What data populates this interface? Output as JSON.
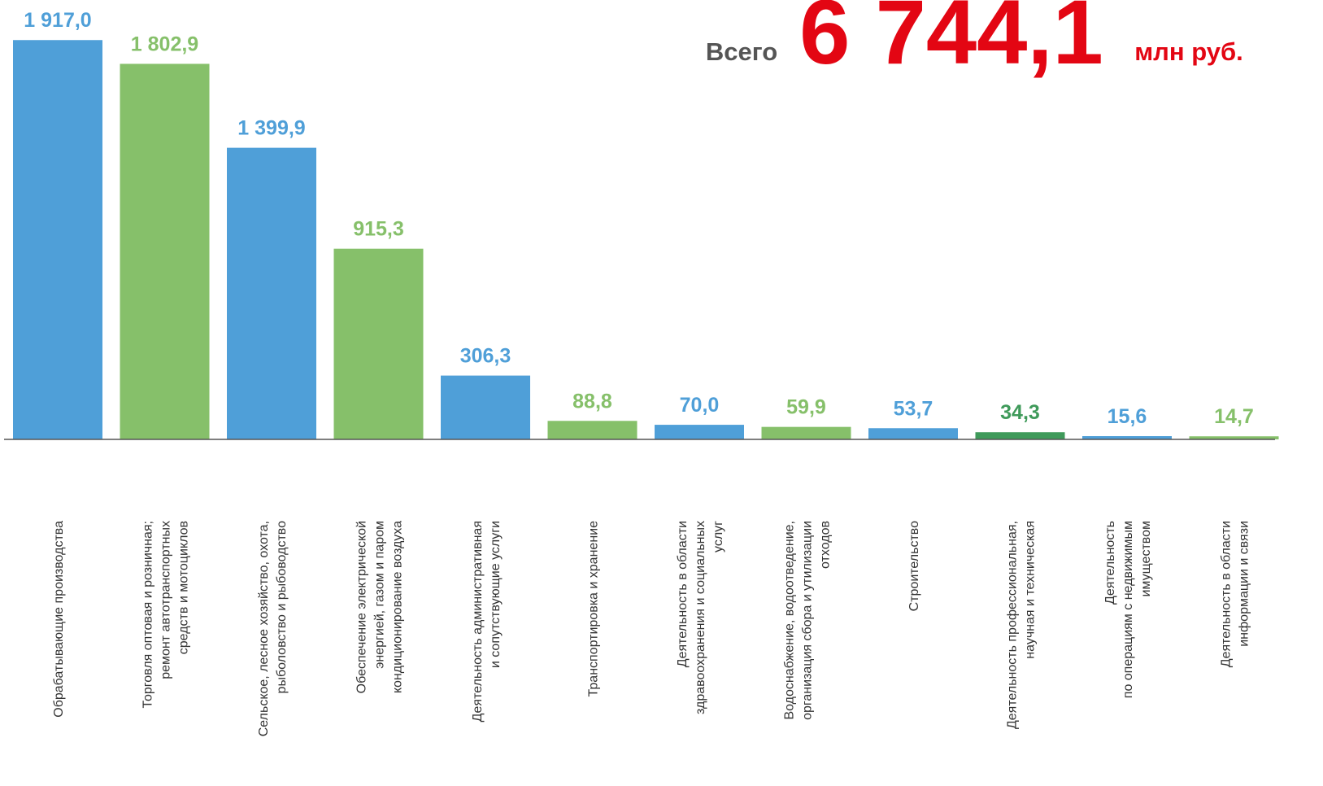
{
  "chart_data": {
    "type": "bar",
    "annotations": {
      "prefix": "Всего",
      "total": "6 744,1",
      "unit": "млн руб."
    },
    "categories": [
      "Обрабатывающие  производства",
      "Торговля оптовая и розничная;\nремонт автотранспортных\nсредств  и мотоциклов",
      "Сельское, лесное хозяйство, охота,\nрыболовство и  рыбоводство",
      "Обеспечение электрической\nэнергией, газом и паром\nкондиционирование воздуха",
      "Деятельность  административная\nи сопутствующие  услуги",
      "Транспортировка и хранение",
      "Деятельность в области\nздравоохранения и социальных\nуслуг",
      "Водоснабжение, водоотведение,\nорганизация сбора и утилизации\nотходов",
      "Строительство",
      "Деятельность профессиональная,\nнаучная и техническая",
      "Деятельность\nпо операциям  с недвижимым\nимуществом",
      "Деятельность в области\nинформации  и связи"
    ],
    "values": [
      1917.0,
      1802.9,
      1399.9,
      915.3,
      306.3,
      88.8,
      70.0,
      59.9,
      53.7,
      34.3,
      15.6,
      14.7
    ],
    "value_labels": [
      "1 917,0",
      "1 802,9",
      "1 399,9",
      "915,3",
      "306,3",
      "88,8",
      "70,0",
      "59,9",
      "53,7",
      "34,3",
      "15,6",
      "14,7"
    ],
    "colors": [
      "#4f9fd8",
      "#86c06a",
      "#4f9fd8",
      "#86c06a",
      "#4f9fd8",
      "#86c06a",
      "#4f9fd8",
      "#86c06a",
      "#4f9fd8",
      "#3f9a5a",
      "#4f9fd8",
      "#86c06a"
    ],
    "ylim": [
      0,
      2000
    ]
  }
}
